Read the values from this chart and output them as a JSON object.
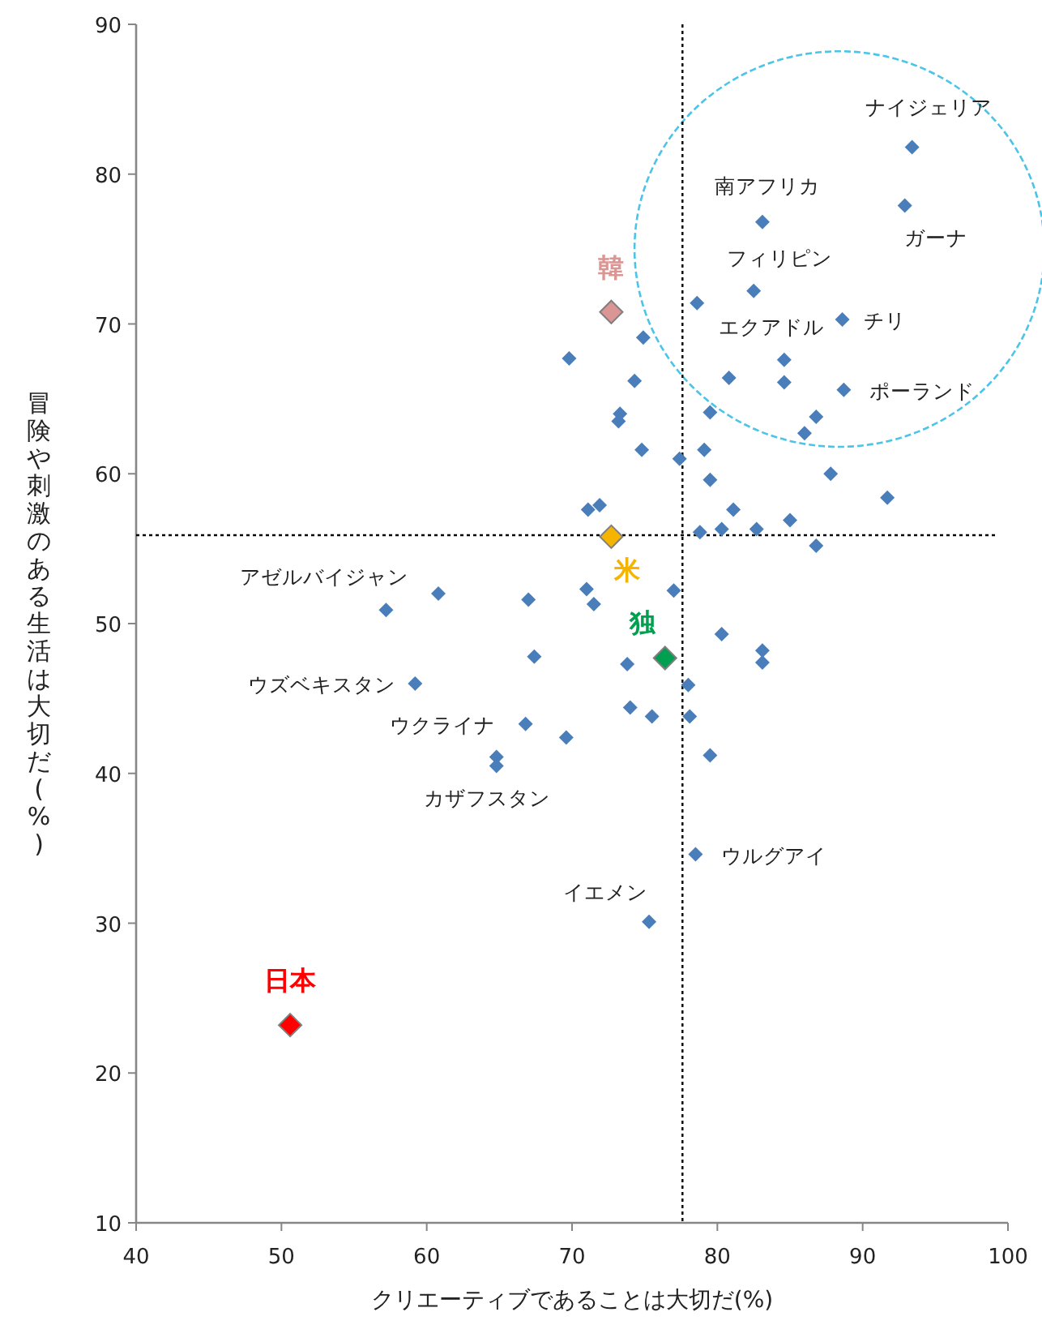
{
  "chart_data": {
    "type": "scatter",
    "xlabel": "クリエーティブであることは大切だ(%)",
    "ylabel": "冒険や刺激のある生活は大切だ(%)",
    "xlim": [
      40,
      100
    ],
    "ylim": [
      10,
      90
    ],
    "xticks": [
      40,
      50,
      60,
      70,
      80,
      90,
      100
    ],
    "yticks": [
      10,
      20,
      30,
      40,
      50,
      60,
      70,
      80,
      90
    ],
    "grid": false,
    "marker": "diamond",
    "series": [
      {
        "color": "#4a7ebb",
        "x": [
          93.4,
          92.9,
          83.1,
          82.5,
          78.6,
          88.6,
          74.9,
          69.8,
          84.6,
          74.3,
          80.8,
          84.6,
          88.7,
          73.3,
          73.2,
          79.5,
          86.8,
          86.0,
          74.8,
          77.4,
          79.1,
          79.5,
          87.8,
          91.7,
          71.1,
          71.9,
          81.1,
          85.0,
          78.8,
          80.3,
          82.7,
          86.8,
          71.0,
          71.5,
          77.0,
          57.2,
          60.8,
          67.0,
          67.4,
          59.2,
          66.8,
          69.6,
          64.8,
          64.8,
          73.8,
          80.3,
          83.1,
          83.1,
          78.0,
          74.0,
          75.5,
          78.1,
          79.5,
          78.5,
          75.3
        ],
        "values": [
          81.8,
          77.9,
          76.8,
          72.2,
          71.4,
          70.3,
          69.1,
          67.7,
          67.6,
          66.2,
          66.4,
          66.1,
          65.6,
          64.0,
          63.5,
          64.1,
          63.8,
          62.7,
          61.6,
          61.0,
          61.6,
          59.6,
          60.0,
          58.4,
          57.6,
          57.9,
          57.6,
          56.9,
          56.1,
          56.3,
          56.3,
          55.2,
          52.3,
          51.3,
          52.2,
          50.9,
          52.0,
          51.6,
          47.8,
          46.0,
          43.3,
          42.4,
          41.1,
          40.5,
          47.3,
          49.3,
          48.2,
          47.4,
          45.9,
          44.4,
          43.8,
          43.8,
          41.2,
          34.6,
          30.1
        ]
      },
      {
        "name": "韓",
        "color": "#d99694",
        "x": [
          72.7
        ],
        "values": [
          70.8
        ]
      },
      {
        "name": "米",
        "color": "#f5b400",
        "x": [
          72.7
        ],
        "values": [
          55.8
        ]
      },
      {
        "name": "独",
        "color": "#00a050",
        "x": [
          76.4
        ],
        "values": [
          47.7
        ]
      },
      {
        "name": "日本",
        "color": "#ff0000",
        "x": [
          50.6
        ],
        "values": [
          23.2
        ]
      }
    ],
    "ref_lines": [
      {
        "axis": "x",
        "value": 77.6,
        "line_style": "dotted",
        "color": "#000000"
      },
      {
        "axis": "y",
        "value": 55.9,
        "line_style": "dotted",
        "color": "#000000"
      }
    ],
    "annotations": [
      {
        "text": "ナイジェリア",
        "x": 93.4,
        "y": 81.8
      },
      {
        "text": "南アフリカ",
        "x": 83.1,
        "y": 76.8
      },
      {
        "text": "ガーナ",
        "x": 92.9,
        "y": 77.9
      },
      {
        "text": "フィリピン",
        "x": 82.5,
        "y": 72.2
      },
      {
        "text": "チリ",
        "x": 88.6,
        "y": 70.3
      },
      {
        "text": "エクアドル",
        "x": 80.8,
        "y": 66.4
      },
      {
        "text": "ポーランド",
        "x": 88.7,
        "y": 65.6
      },
      {
        "text": "アゼルバイジャン",
        "x": 57.2,
        "y": 50.9
      },
      {
        "text": "ウズベキスタン",
        "x": 59.2,
        "y": 46.0
      },
      {
        "text": "ウクライナ",
        "x": 66.8,
        "y": 43.3
      },
      {
        "text": "カザフスタン",
        "x": 64.8,
        "y": 40.5
      },
      {
        "text": "ウルグアイ",
        "x": 78.5,
        "y": 34.6
      },
      {
        "text": "イエメン",
        "x": 75.3,
        "y": 30.1
      }
    ]
  }
}
